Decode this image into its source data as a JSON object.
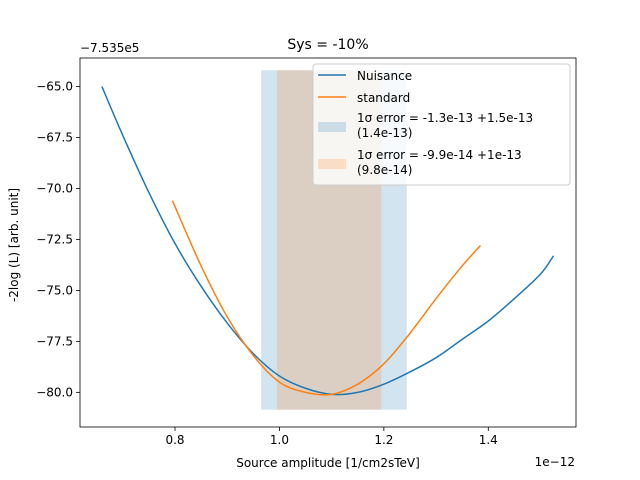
{
  "chart_data": {
    "type": "line",
    "title": "Sys = -10%",
    "xlabel": "Source amplitude [1/cm2sTeV]",
    "ylabel": "-2log (L) [arb. unit]",
    "x_offset_label": "1e−12",
    "y_offset_label": "−7.535e5",
    "xlim": [
      0.618,
      1.568
    ],
    "ylim": [
      -81.7,
      -63.6
    ],
    "x_ticks": [
      0.8,
      1.0,
      1.2,
      1.4
    ],
    "x_tick_labels": [
      "0.8",
      "1.0",
      "1.2",
      "1.4"
    ],
    "y_ticks": [
      -80.0,
      -77.5,
      -75.0,
      -72.5,
      -70.0,
      -67.5,
      -65.0
    ],
    "y_tick_labels": [
      "−80.0",
      "−77.5",
      "−75.0",
      "−72.5",
      "−70.0",
      "−67.5",
      "−65.0"
    ],
    "grid": false,
    "legend_position": "top-right",
    "series": [
      {
        "name": "Nuisance",
        "color": "#1f77b4",
        "x": [
          0.66,
          0.7,
          0.75,
          0.8,
          0.85,
          0.9,
          0.95,
          1.0,
          1.05,
          1.1,
          1.15,
          1.2,
          1.25,
          1.3,
          1.35,
          1.4,
          1.45,
          1.5,
          1.525
        ],
        "y": [
          -65.0,
          -67.4,
          -70.2,
          -72.7,
          -74.8,
          -76.6,
          -78.1,
          -79.2,
          -79.8,
          -80.1,
          -80.0,
          -79.6,
          -79.0,
          -78.3,
          -77.4,
          -76.5,
          -75.4,
          -74.2,
          -73.3
        ]
      },
      {
        "name": "standard",
        "color": "#ff7f0e",
        "x": [
          0.795,
          0.85,
          0.9,
          0.95,
          1.0,
          1.05,
          1.1,
          1.15,
          1.2,
          1.25,
          1.3,
          1.35,
          1.385
        ],
        "y": [
          -70.6,
          -73.8,
          -76.3,
          -78.2,
          -79.5,
          -80.0,
          -80.1,
          -79.6,
          -78.6,
          -77.1,
          -75.4,
          -73.8,
          -72.8
        ]
      }
    ],
    "bands": [
      {
        "name": "1σ error = -1.3e-13 +1.5e-13\n(1.4e-13)",
        "color": "#1f77b4",
        "opacity": 0.2,
        "x_range": [
          0.965,
          1.244
        ],
        "y_range": [
          -80.85,
          -64.2
        ]
      },
      {
        "name": "1σ error = -9.9e-14 +1e-13\n(9.8e-14)",
        "color": "#ff7f0e",
        "opacity": 0.2,
        "x_range": [
          0.995,
          1.195
        ],
        "y_range": [
          -80.85,
          -64.2
        ]
      }
    ]
  }
}
